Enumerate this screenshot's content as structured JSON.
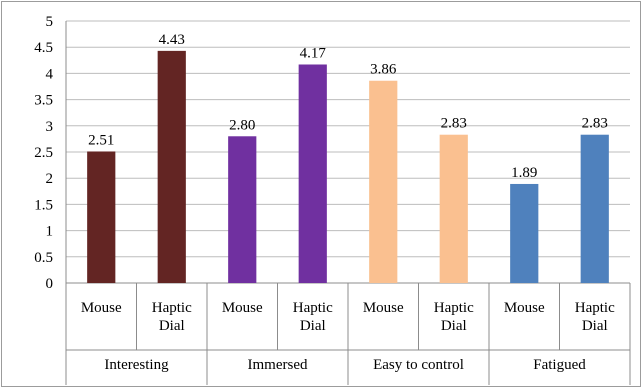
{
  "chart_data": {
    "type": "bar",
    "ylim": [
      0,
      5
    ],
    "ytick_step": 0.5,
    "y_ticks": [
      "0",
      "0.5",
      "1",
      "1.5",
      "2",
      "2.5",
      "3",
      "3.5",
      "4",
      "4.5",
      "5"
    ],
    "grid": true,
    "legend": "none",
    "groups": [
      {
        "name": "Interesting",
        "color": "#632523",
        "bars": [
          {
            "label_lines": [
              "Mouse"
            ],
            "value": 2.51,
            "value_label": "2.51"
          },
          {
            "label_lines": [
              "Haptic",
              "Dial"
            ],
            "value": 4.43,
            "value_label": "4.43"
          }
        ]
      },
      {
        "name": "Immersed",
        "color": "#7030A0",
        "bars": [
          {
            "label_lines": [
              "Mouse"
            ],
            "value": 2.8,
            "value_label": "2.80"
          },
          {
            "label_lines": [
              "Haptic",
              "Dial"
            ],
            "value": 4.17,
            "value_label": "4.17"
          }
        ]
      },
      {
        "name": "Easy to control",
        "color": "#FAC090",
        "bars": [
          {
            "label_lines": [
              "Mouse"
            ],
            "value": 3.86,
            "value_label": "3.86"
          },
          {
            "label_lines": [
              "Haptic",
              "Dial"
            ],
            "value": 2.83,
            "value_label": "2.83"
          }
        ]
      },
      {
        "name": "Fatigued",
        "color": "#4F81BD",
        "bars": [
          {
            "label_lines": [
              "Mouse"
            ],
            "value": 1.89,
            "value_label": "1.89"
          },
          {
            "label_lines": [
              "Haptic",
              "Dial"
            ],
            "value": 2.83,
            "value_label": "2.83"
          }
        ]
      }
    ]
  }
}
